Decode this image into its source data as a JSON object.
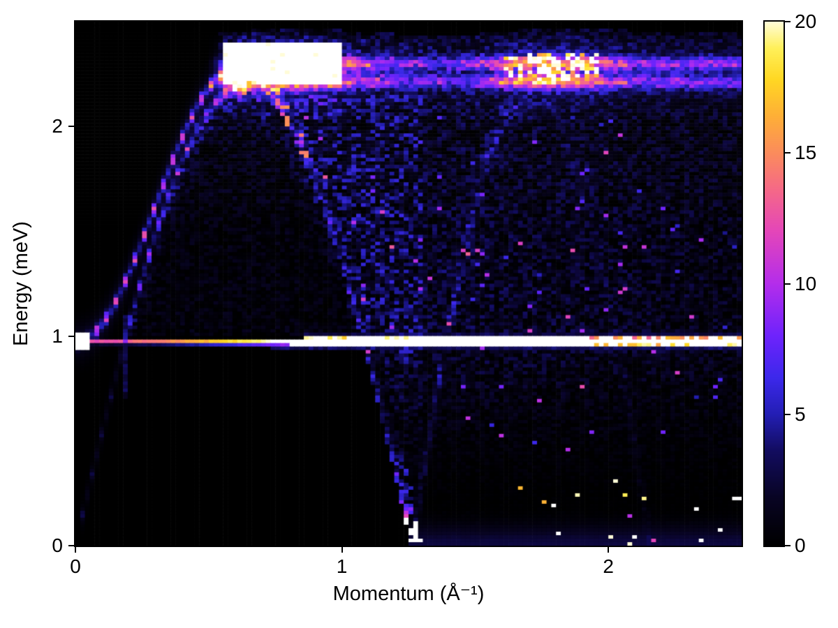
{
  "figure": {
    "background": "#ffffff"
  },
  "chart_data": {
    "type": "heatmap",
    "title": "",
    "xlabel": "Momentum (Å⁻¹)",
    "ylabel": "Energy (meV)",
    "x_range": [
      0,
      2.5
    ],
    "y_range": [
      0,
      2.5
    ],
    "x_ticks": [
      {
        "value": 0,
        "label": "0"
      },
      {
        "value": 1,
        "label": "1"
      },
      {
        "value": 2,
        "label": "2"
      }
    ],
    "y_ticks": [
      {
        "value": 0,
        "label": "0"
      },
      {
        "value": 1,
        "label": "1"
      },
      {
        "value": 2,
        "label": "2"
      }
    ],
    "colorbar": {
      "range": [
        0,
        20
      ],
      "ticks": [
        {
          "value": 0,
          "label": "0"
        },
        {
          "value": 5,
          "label": "5"
        },
        {
          "value": 10,
          "label": "10"
        },
        {
          "value": 15,
          "label": "15"
        },
        {
          "value": 20,
          "label": "20"
        }
      ]
    },
    "colormap": {
      "name": "black-blue-violet-magenta-orange-yellow-white",
      "stops": [
        [
          0.0,
          "#000000"
        ],
        [
          0.09,
          "#080423"
        ],
        [
          0.18,
          "#120c5f"
        ],
        [
          0.25,
          "#231eb4"
        ],
        [
          0.32,
          "#3c28eb"
        ],
        [
          0.4,
          "#6e23fc"
        ],
        [
          0.5,
          "#b42deb"
        ],
        [
          0.6,
          "#e446b9"
        ],
        [
          0.68,
          "#f56987"
        ],
        [
          0.75,
          "#fb8c5c"
        ],
        [
          0.82,
          "#feaf37"
        ],
        [
          0.89,
          "#ffd723"
        ],
        [
          0.95,
          "#fff05a"
        ],
        [
          1.0,
          "#fffcd7"
        ]
      ]
    },
    "grid": {
      "nx": 140,
      "ny": 150
    },
    "seed": 1337,
    "description": "Inelastic-scattering style intensity map: a sharp gapped spin-wave doublet rises from (q=0, E≈0.97 meV) to an apex ≈2.2–2.3 meV at q≈0.6, bounding a dark arch that closes at q≈1.26; a saturated elastic line crosses at E≈0.97 meV; an intense flat band spans E≈2.2–2.4 meV for all q with hot spots at q≈0.6–1.0 and q≈1.6–2.0; a faint second-zone dispersion replica rises from q≈1.26; noisy blue continuum with sparse bright speckles near E≈0.",
    "features": {
      "dispersion_arch": {
        "E_max": 2.19,
        "zone_boundary_q": 1.26
      },
      "gapped_branch": {
        "E_gap": 0.97,
        "amplitude": 1.3,
        "half_zone_q": 0.6,
        "apex_E": 2.27
      },
      "second_zone": {
        "q_start": 1.26,
        "q_end": 2.16,
        "E_max": 2.19
      },
      "elastic_line": {
        "E_center": 0.97,
        "white_q_start": 0.74,
        "orange_q_end": 1.92
      },
      "flat_band": {
        "E_line_lower": 2.212,
        "E_line_upper": 2.3,
        "E_top_edge": 2.408,
        "hot_spot1_q": [
          0.56,
          1.0
        ],
        "hot_spot2_q": [
          1.6,
          1.97
        ]
      },
      "left_blob_q_max": 0.055,
      "vertical_streak_q": 0.185,
      "saturation_value": 20
    },
    "band_profile": [
      [
        0.5,
        0
      ],
      [
        0.56,
        9
      ],
      [
        0.62,
        26
      ],
      [
        0.72,
        30
      ],
      [
        0.85,
        30
      ],
      [
        0.97,
        24
      ],
      [
        1.05,
        15
      ],
      [
        1.15,
        12
      ],
      [
        1.3,
        9
      ],
      [
        1.45,
        9
      ],
      [
        1.55,
        13
      ],
      [
        1.65,
        19
      ],
      [
        1.75,
        22
      ],
      [
        1.88,
        22
      ],
      [
        2.0,
        15
      ],
      [
        2.1,
        12
      ],
      [
        2.25,
        11
      ],
      [
        2.4,
        11
      ],
      [
        2.5,
        10
      ]
    ]
  }
}
